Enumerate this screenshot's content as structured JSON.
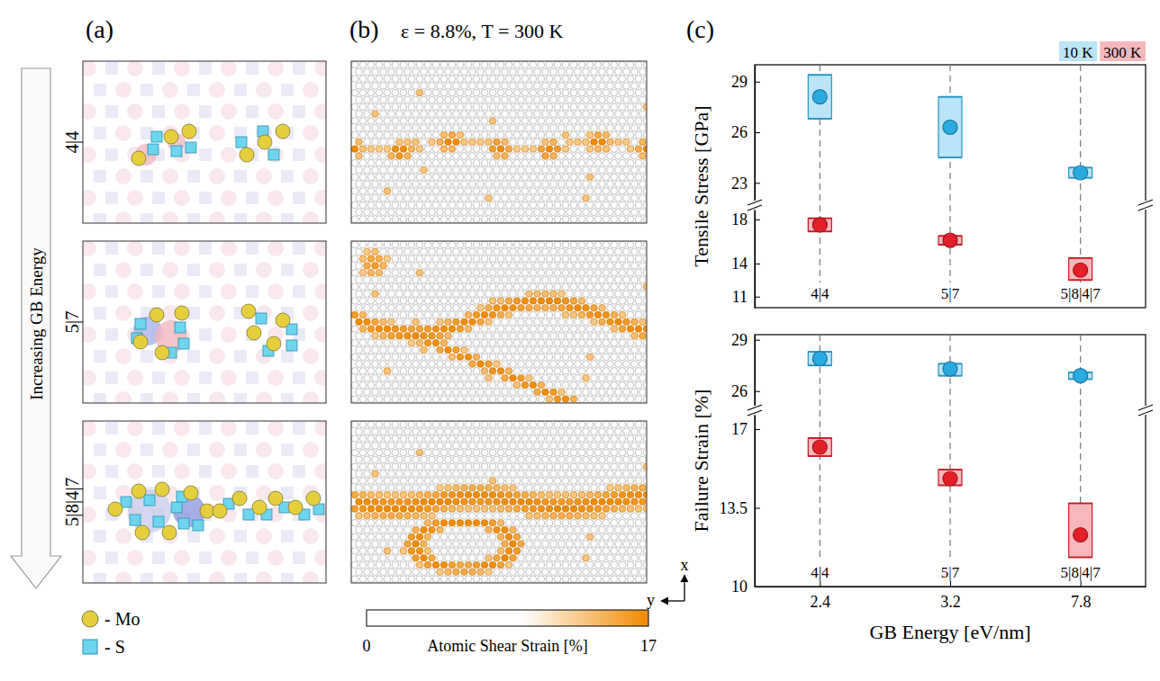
{
  "figure": {
    "panel_labels": [
      "(a)",
      "(b)",
      "(c)"
    ],
    "arrow_label": "Increasing GB Energy",
    "structures": [
      "4|4",
      "5|7",
      "5|8|4|7"
    ],
    "species": [
      {
        "label": "- Mo",
        "color": "#e6cf3c"
      },
      {
        "label": "- S",
        "color": "#6dd5ee"
      }
    ],
    "strain_map": {
      "title": "ε = 8.8%, T = 300 K",
      "colorbar_label": "Atomic Shear Strain [%]",
      "colorbar_range": [
        0,
        17
      ],
      "colorbar_ticks": [
        0,
        17
      ],
      "color": "#f08a00",
      "axis_labels": [
        "x",
        "y"
      ]
    }
  },
  "chart_data": [
    {
      "type": "scatter",
      "y_label": "Tensile Stress [GPa]",
      "categories": [
        "4|4",
        "5|7",
        "5|8|4|7"
      ],
      "tick_labels": "y",
      "legend": "top-right",
      "y_segments": [
        {
          "ylim": [
            22,
            30
          ],
          "yticks": [
            23,
            26,
            29
          ]
        },
        {
          "ylim": [
            10,
            18.8
          ],
          "yticks": [
            11,
            14,
            18
          ]
        }
      ],
      "series": [
        {
          "name": "10 K",
          "color": "#29abe2",
          "segment": 0,
          "values": [
            28.1,
            26.3,
            23.6
          ],
          "box_low": [
            26.8,
            24.5,
            23.3
          ],
          "box_high": [
            29.4,
            28.1,
            23.9
          ]
        },
        {
          "name": "300 K",
          "color": "#e3202a",
          "segment": 1,
          "values": [
            17.5,
            16.1,
            13.4
          ],
          "box_low": [
            16.9,
            15.7,
            12.5
          ],
          "box_high": [
            18.1,
            16.5,
            14.5
          ]
        }
      ]
    },
    {
      "type": "scatter",
      "y_label": "Failure Strain [%]",
      "x_label": "GB Energy [eV/nm]",
      "categories": [
        "4|4",
        "5|7",
        "5|8|4|7"
      ],
      "gb_energy": [
        2.4,
        3.2,
        7.8
      ],
      "y_segments": [
        {
          "ylim": [
            25.2,
            29.3
          ],
          "yticks": [
            26,
            29
          ]
        },
        {
          "ylim": [
            10,
            17.6
          ],
          "yticks": [
            10,
            13.5,
            17
          ]
        }
      ],
      "series": [
        {
          "name": "10 K",
          "color": "#29abe2",
          "segment": 0,
          "values": [
            27.9,
            27.3,
            26.9
          ],
          "box_low": [
            27.5,
            26.9,
            26.7
          ],
          "box_high": [
            28.3,
            27.6,
            27.1
          ]
        },
        {
          "name": "300 K",
          "color": "#e3202a",
          "segment": 1,
          "values": [
            16.2,
            14.8,
            12.3
          ],
          "box_low": [
            15.8,
            14.5,
            11.3
          ],
          "box_high": [
            16.6,
            15.2,
            13.7
          ]
        }
      ]
    }
  ]
}
